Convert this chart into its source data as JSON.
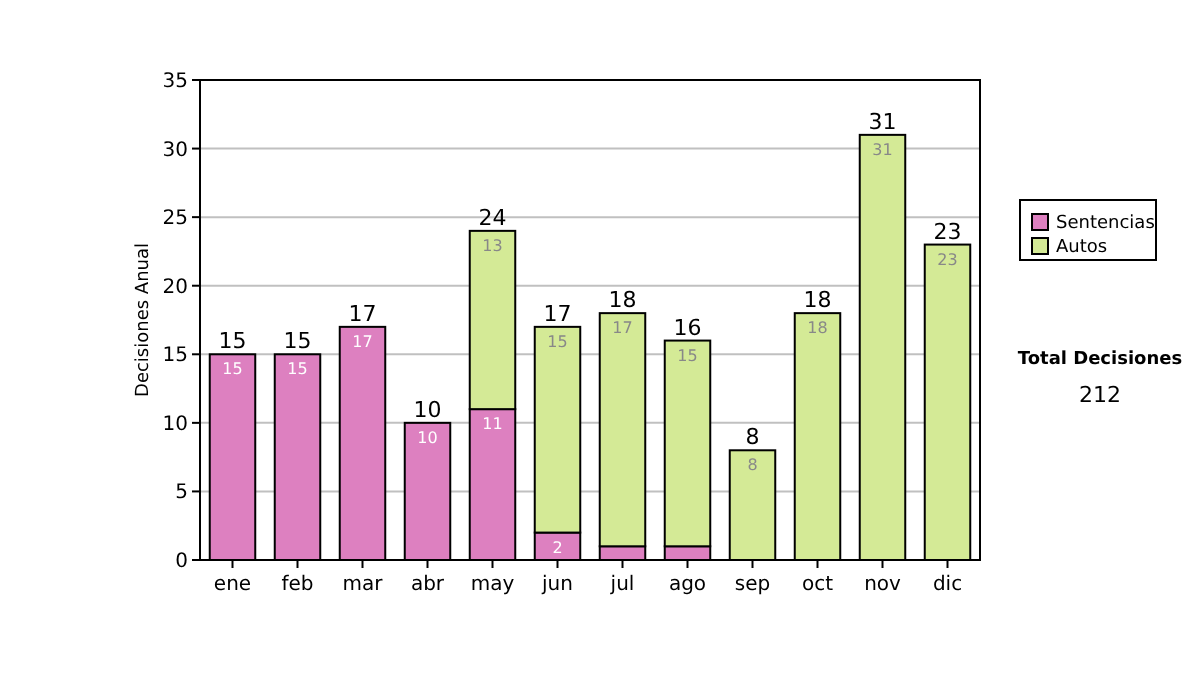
{
  "chart_data": {
    "type": "bar",
    "stacked": true,
    "ylabel": "Decisiones Anual",
    "categories": [
      "ene",
      "feb",
      "mar",
      "abr",
      "may",
      "jun",
      "jul",
      "ago",
      "sep",
      "oct",
      "nov",
      "dic"
    ],
    "series": [
      {
        "name": "Sentencias",
        "color": "#dd80c0",
        "values": [
          15,
          15,
          17,
          10,
          11,
          2,
          1,
          1,
          0,
          0,
          0,
          0
        ],
        "value_labels": [
          "15",
          "15",
          "17",
          "10",
          "11",
          "2",
          null,
          null,
          null,
          null,
          null,
          null
        ]
      },
      {
        "name": "Autos",
        "color": "#d4ea96",
        "values": [
          0,
          0,
          0,
          0,
          13,
          15,
          17,
          15,
          8,
          18,
          31,
          23
        ],
        "value_labels": [
          null,
          null,
          null,
          null,
          "13",
          "15",
          "17",
          "15",
          "8",
          "18",
          "31",
          "23"
        ]
      }
    ],
    "totals": [
      "15",
      "15",
      "17",
      "10",
      "24",
      "17",
      "18",
      "16",
      "8",
      "18",
      "31",
      "23"
    ],
    "ylim": [
      0,
      35
    ],
    "yticks": [
      0,
      5,
      10,
      15,
      20,
      25,
      30,
      35
    ],
    "grid": "y",
    "legend": "right",
    "annotations": [
      "Total Decisiones",
      "212"
    ]
  }
}
